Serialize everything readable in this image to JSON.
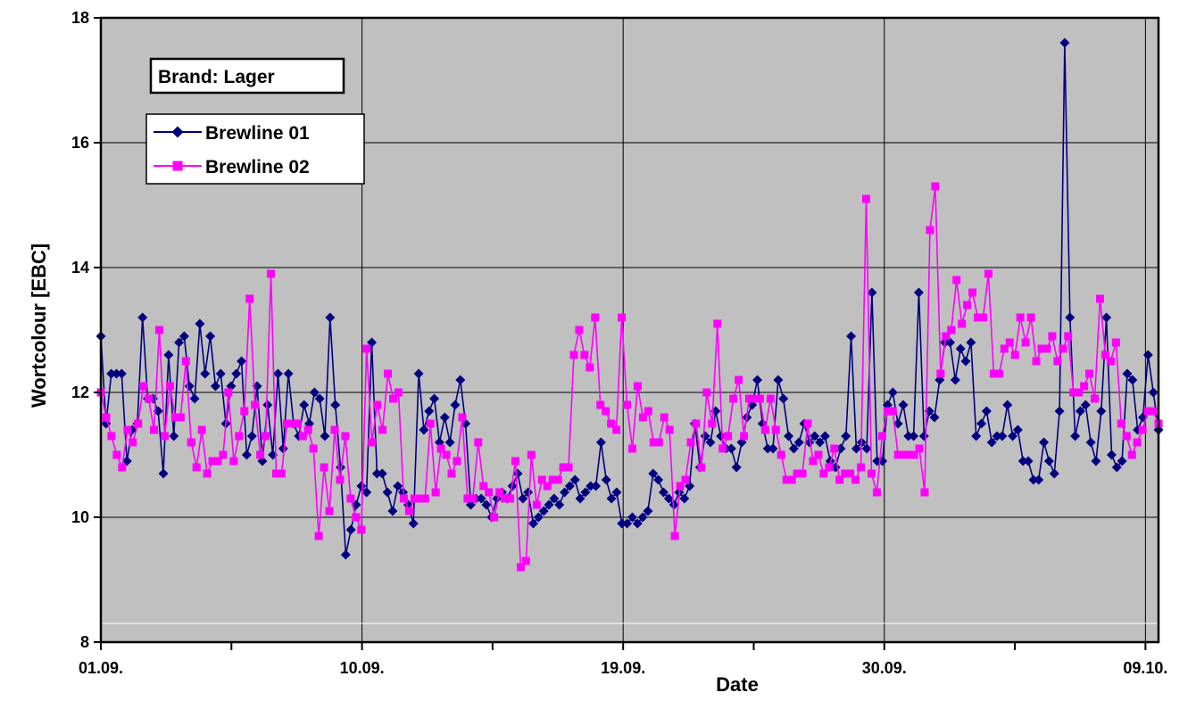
{
  "chart_data": {
    "type": "line",
    "title": "",
    "xlabel": "Date",
    "ylabel": "Wortcolour   [EBC]",
    "annotation": "Brand: Lager",
    "ylim": [
      8,
      18
    ],
    "yticks": [
      8,
      10,
      12,
      14,
      16,
      18
    ],
    "yticks_labels": [
      "8",
      "10",
      "12",
      "14",
      "16",
      "18"
    ],
    "xlim": [
      0,
      40.5
    ],
    "xticks_major": [
      {
        "value": 0,
        "label": "01.09."
      },
      {
        "value": 10,
        "label": "10.09."
      },
      {
        "value": 20,
        "label": "19.09."
      },
      {
        "value": 30,
        "label": "30.09."
      },
      {
        "value": 40,
        "label": "09.10."
      }
    ],
    "xticks_minor": [
      5,
      15,
      25,
      35
    ],
    "grid": true,
    "legend": "top-left",
    "colors": {
      "plot_bg": "#c0c0c0",
      "brewline01": "#000080",
      "brewline02": "#ff00ff"
    },
    "series": [
      {
        "name": "Brewline 01",
        "marker": "diamond",
        "values": [
          12.9,
          11.5,
          12.3,
          12.3,
          12.3,
          10.9,
          11.4,
          11.5,
          13.2,
          11.9,
          11.9,
          11.7,
          10.7,
          12.6,
          11.3,
          12.8,
          12.9,
          12.1,
          11.9,
          13.1,
          12.3,
          12.9,
          12.1,
          12.3,
          11.5,
          12.1,
          12.3,
          12.5,
          11.0,
          11.3,
          12.1,
          10.9,
          11.8,
          11.0,
          12.3,
          11.1,
          12.3,
          11.5,
          11.3,
          11.8,
          11.5,
          12.0,
          11.9,
          11.3,
          13.2,
          11.8,
          10.8,
          9.4,
          9.8,
          10.2,
          10.5,
          10.4,
          12.8,
          10.7,
          10.7,
          10.4,
          10.1,
          10.5,
          10.4,
          10.2,
          9.9,
          12.3,
          11.4,
          11.7,
          11.9,
          11.2,
          11.6,
          11.2,
          11.8,
          12.2,
          11.5,
          10.2,
          10.3,
          10.3,
          10.2,
          10.0,
          10.3,
          10.4,
          10.3,
          10.5,
          10.7,
          10.3,
          10.4,
          9.9,
          10.0,
          10.1,
          10.2,
          10.3,
          10.2,
          10.4,
          10.5,
          10.6,
          10.3,
          10.4,
          10.5,
          10.5,
          11.2,
          10.6,
          10.3,
          10.4,
          9.9,
          9.9,
          10.0,
          9.9,
          10.0,
          10.1,
          10.7,
          10.6,
          10.4,
          10.3,
          10.2,
          10.4,
          10.3,
          10.5,
          11.5,
          10.8,
          11.3,
          11.2,
          11.7,
          11.3,
          11.1,
          11.1,
          10.8,
          11.2,
          11.6,
          11.8,
          12.2,
          11.5,
          11.1,
          11.1,
          12.2,
          11.9,
          11.3,
          11.1,
          11.2,
          11.5,
          11.2,
          11.3,
          11.2,
          11.3,
          10.9,
          10.8,
          11.1,
          11.3,
          12.9,
          11.1,
          11.2,
          11.1,
          13.6,
          10.9,
          10.9,
          11.8,
          12.0,
          11.5,
          11.8,
          11.3,
          11.3,
          13.6,
          11.3,
          11.7,
          11.6,
          12.2,
          12.8,
          12.8,
          12.2,
          12.7,
          12.5,
          12.8,
          11.3,
          11.5,
          11.7,
          11.2,
          11.3,
          11.3,
          11.8,
          11.3,
          11.4,
          10.9,
          10.9,
          10.6,
          10.6,
          11.2,
          10.9,
          10.7,
          11.7,
          17.6,
          13.2,
          11.3,
          11.7,
          11.8,
          11.2,
          10.9,
          11.7,
          13.2,
          11.0,
          10.8,
          10.9,
          12.3,
          12.2,
          11.4,
          11.6,
          12.6,
          12.0,
          11.4
        ]
      },
      {
        "name": "Brewline 02",
        "marker": "square",
        "values": [
          12.0,
          11.6,
          11.3,
          11.0,
          10.8,
          11.4,
          11.2,
          11.5,
          12.1,
          11.9,
          11.4,
          13.0,
          11.3,
          12.1,
          11.6,
          11.6,
          12.5,
          11.2,
          10.8,
          11.4,
          10.7,
          10.9,
          10.9,
          11.0,
          12.0,
          10.9,
          11.3,
          11.7,
          13.5,
          11.8,
          11.0,
          11.3,
          13.9,
          10.7,
          10.7,
          11.5,
          11.5,
          11.5,
          11.3,
          11.4,
          11.1,
          9.7,
          10.8,
          10.1,
          11.4,
          10.6,
          11.3,
          10.3,
          10.0,
          9.8,
          12.7,
          11.2,
          11.8,
          11.4,
          12.3,
          11.9,
          12.0,
          10.3,
          10.1,
          10.3,
          10.3,
          10.3,
          11.5,
          10.4,
          11.1,
          11.0,
          10.7,
          10.9,
          11.6,
          10.3,
          10.3,
          11.2,
          10.5,
          10.4,
          10.0,
          10.4,
          10.3,
          10.3,
          10.9,
          9.2,
          9.3,
          11.0,
          10.2,
          10.6,
          10.5,
          10.6,
          10.6,
          10.8,
          10.8,
          12.6,
          13.0,
          12.6,
          12.4,
          13.2,
          11.8,
          11.7,
          11.5,
          11.4,
          13.2,
          11.8,
          11.1,
          12.1,
          11.6,
          11.7,
          11.2,
          11.2,
          11.6,
          11.4,
          9.7,
          10.5,
          10.6,
          11.2,
          11.5,
          10.8,
          12.0,
          11.5,
          13.1,
          11.1,
          11.3,
          11.9,
          12.2,
          11.3,
          11.9,
          11.9,
          11.9,
          11.4,
          11.9,
          11.4,
          11.0,
          10.6,
          10.6,
          10.7,
          10.7,
          11.5,
          10.9,
          11.0,
          10.7,
          10.8,
          11.1,
          10.6,
          10.7,
          10.7,
          10.6,
          10.8,
          15.1,
          10.7,
          10.4,
          11.3,
          11.7,
          11.7,
          11.0,
          11.0,
          11.0,
          11.0,
          11.1,
          10.4,
          14.6,
          15.3,
          12.3,
          12.9,
          13.0,
          13.8,
          13.1,
          13.4,
          13.6,
          13.2,
          13.2,
          13.9,
          12.3,
          12.3,
          12.7,
          12.8,
          12.6,
          13.2,
          12.8,
          13.2,
          12.5,
          12.7,
          12.7,
          12.9,
          12.5,
          12.7,
          12.9,
          12.0,
          12.0,
          12.1,
          12.3,
          11.9,
          13.5,
          12.6,
          12.5,
          12.8,
          11.5,
          11.3,
          11.0,
          11.2,
          11.4,
          11.7,
          11.7,
          11.5
        ]
      }
    ]
  }
}
